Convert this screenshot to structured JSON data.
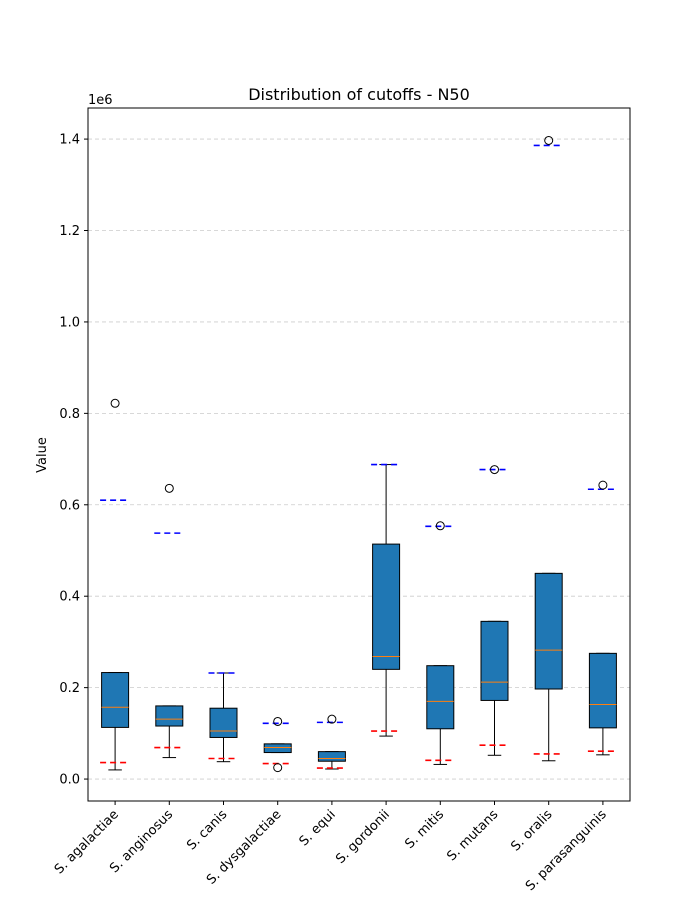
{
  "chart_data": {
    "type": "box",
    "title": "Distribution of cutoffs - N50",
    "xlabel": "",
    "ylabel": "Value",
    "y_multiplier_label": "1e6",
    "ylim": [
      -0.048,
      1.468
    ],
    "yticks": [
      0.0,
      0.2,
      0.4,
      0.6,
      0.8,
      1.0,
      1.2,
      1.4
    ],
    "ytick_labels": [
      "0.0",
      "0.2",
      "0.4",
      "0.6",
      "0.8",
      "1.0",
      "1.2",
      "1.4"
    ],
    "grid": "y-dashed",
    "categories": [
      "S. agalactiae",
      "S. anginosus",
      "S. canis",
      "S. dysgalactiae",
      "S. equi",
      "S. gordonii",
      "S. mitis",
      "S. mutans",
      "S. oralis",
      "S. parasanguinis"
    ],
    "boxes": [
      {
        "whisker_low": 0.02,
        "q1": 0.113,
        "median": 0.157,
        "q3": 0.233,
        "whisker_high": 0.233,
        "outliers": [
          0.822
        ],
        "cutoff_low": 0.036,
        "cutoff_high": 0.61
      },
      {
        "whisker_low": 0.047,
        "q1": 0.116,
        "median": 0.131,
        "q3": 0.16,
        "whisker_high": 0.16,
        "outliers": [
          0.636
        ],
        "cutoff_low": 0.069,
        "cutoff_high": 0.538
      },
      {
        "whisker_low": 0.038,
        "q1": 0.091,
        "median": 0.105,
        "q3": 0.155,
        "whisker_high": 0.232,
        "outliers": [],
        "cutoff_low": 0.045,
        "cutoff_high": 0.232
      },
      {
        "whisker_low": 0.058,
        "q1": 0.058,
        "median": 0.069,
        "q3": 0.077,
        "whisker_high": 0.077,
        "outliers": [
          0.126,
          0.025
        ],
        "cutoff_low": 0.034,
        "cutoff_high": 0.122
      },
      {
        "whisker_low": 0.022,
        "q1": 0.039,
        "median": 0.045,
        "q3": 0.06,
        "whisker_high": 0.06,
        "outliers": [
          0.131
        ],
        "cutoff_low": 0.024,
        "cutoff_high": 0.124
      },
      {
        "whisker_low": 0.094,
        "q1": 0.24,
        "median": 0.268,
        "q3": 0.514,
        "whisker_high": 0.688,
        "outliers": [],
        "cutoff_low": 0.105,
        "cutoff_high": 0.688
      },
      {
        "whisker_low": 0.032,
        "q1": 0.11,
        "median": 0.17,
        "q3": 0.248,
        "whisker_high": 0.248,
        "outliers": [
          0.554
        ],
        "cutoff_low": 0.041,
        "cutoff_high": 0.553
      },
      {
        "whisker_low": 0.052,
        "q1": 0.172,
        "median": 0.212,
        "q3": 0.345,
        "whisker_high": 0.345,
        "outliers": [
          0.677
        ],
        "cutoff_low": 0.074,
        "cutoff_high": 0.677
      },
      {
        "whisker_low": 0.04,
        "q1": 0.197,
        "median": 0.282,
        "q3": 0.45,
        "whisker_high": 0.45,
        "outliers": [
          1.397
        ],
        "cutoff_low": 0.055,
        "cutoff_high": 1.386
      },
      {
        "whisker_low": 0.053,
        "q1": 0.112,
        "median": 0.163,
        "q3": 0.275,
        "whisker_high": 0.275,
        "outliers": [
          0.643
        ],
        "cutoff_low": 0.061,
        "cutoff_high": 0.634
      }
    ],
    "colors": {
      "box_fill": "#1f77b4",
      "median": "#ff7f0e",
      "low_cutoff": "#d62728",
      "low_cutoff_exact": "#ff0000",
      "high_cutoff": "#0000ff",
      "grid": "#cccccc"
    }
  }
}
